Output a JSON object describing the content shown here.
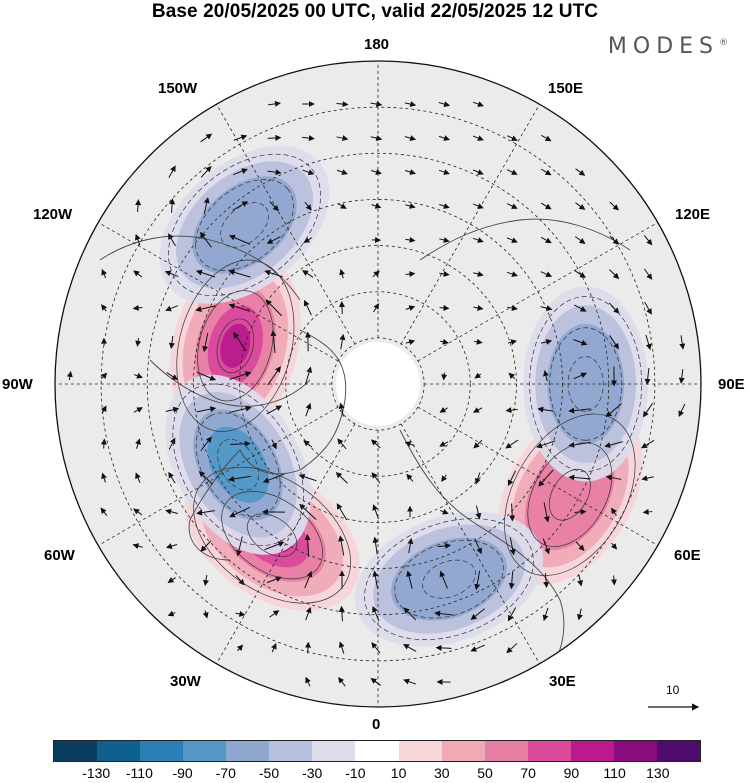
{
  "header": {
    "title": "Base 20/05/2025 00 UTC, valid 22/05/2025 12 UTC",
    "brand": "MODES",
    "brand_mark": "®"
  },
  "map": {
    "projection": "north-polar-stereographic",
    "longitude_labels": {
      "top": "180",
      "bottom": "0",
      "left": "90W",
      "right": "90E",
      "upper_left_1": "150W",
      "upper_left_2": "120W",
      "upper_right_1": "150E",
      "upper_right_2": "120E",
      "lower_left_1": "60W",
      "lower_left_2": "30W",
      "lower_right_1": "60E",
      "lower_right_2": "30E"
    },
    "reference_vector": "10",
    "anomaly_centers": [
      {
        "sign": "positive",
        "level": 90,
        "lon": "35W",
        "lat": 50
      },
      {
        "sign": "positive",
        "level": 90,
        "lon": "105W",
        "lat": 58
      },
      {
        "sign": "positive",
        "level": 50,
        "lon": "60E",
        "lat": 42
      },
      {
        "sign": "negative",
        "level": -70,
        "lon": "60W",
        "lat": 55
      },
      {
        "sign": "negative",
        "level": -50,
        "lon": "140W",
        "lat": 45
      },
      {
        "sign": "negative",
        "level": -50,
        "lon": "90E",
        "lat": 45
      },
      {
        "sign": "negative",
        "level": -50,
        "lon": "20E",
        "lat": 45
      }
    ]
  },
  "colorbar": {
    "levels": [
      "-130",
      "-110",
      "-90",
      "-70",
      "-50",
      "-30",
      "-10",
      "10",
      "30",
      "50",
      "70",
      "90",
      "110",
      "130"
    ],
    "colors": [
      "#0b3d5e",
      "#0f5f8f",
      "#2a7fb8",
      "#5398c7",
      "#8fa6cf",
      "#b9c0dd",
      "#dcdcec",
      "#ffffff",
      "#f7d5d9",
      "#efaab6",
      "#e77ea3",
      "#d9489a",
      "#bb1a8c",
      "#8a0b7c",
      "#4e0b6c"
    ]
  }
}
